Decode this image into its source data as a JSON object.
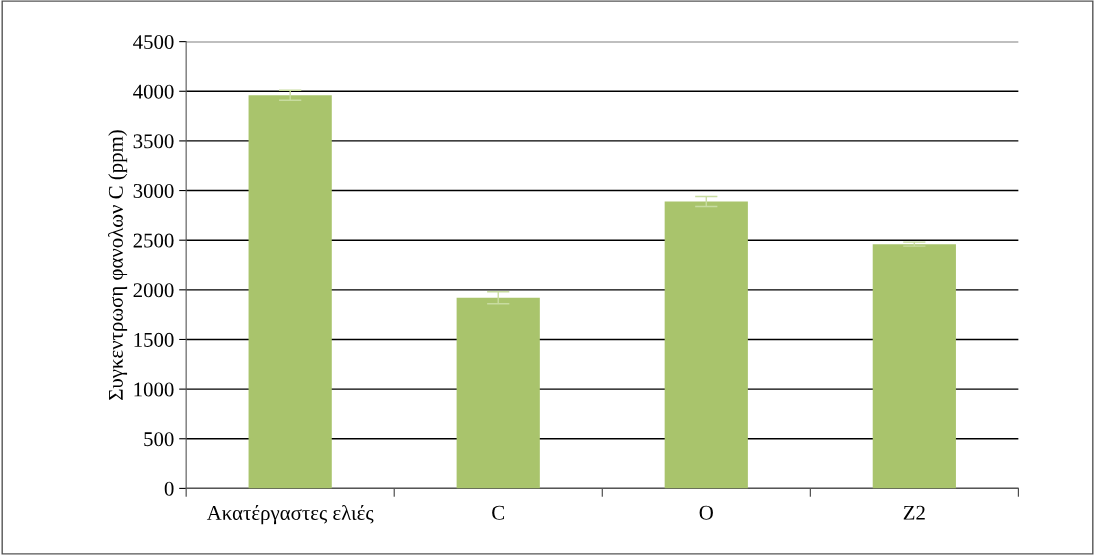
{
  "chart_data": {
    "type": "bar",
    "ylabel": "Συγκεντρωση φανολων C (ppm)",
    "categories": [
      "Ακατέργαστες ελιές",
      "C",
      "O",
      "Z2"
    ],
    "values": [
      3960,
      1920,
      2890,
      2460
    ],
    "errors": [
      50,
      60,
      50,
      20
    ],
    "color": "#a9c46c",
    "ylim": [
      0,
      4500
    ],
    "yticks": [
      0,
      500,
      1000,
      1500,
      2000,
      2500,
      3000,
      3500,
      4000,
      4500
    ],
    "grid": "y"
  }
}
